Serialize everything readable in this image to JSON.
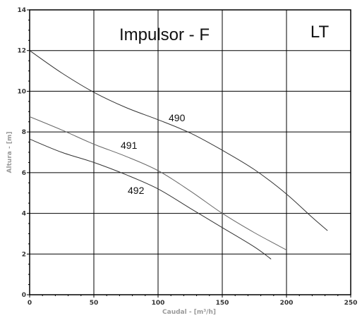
{
  "chart_data": {
    "type": "line",
    "title": "Impulsor - F",
    "annotation": "LT",
    "xlabel": "Caudal - [m³/h]",
    "ylabel": "Altura - [m]",
    "xlim": [
      0,
      250
    ],
    "ylim": [
      0,
      14
    ],
    "xticks": [
      "0",
      "50",
      "100",
      "150",
      "200",
      "250"
    ],
    "yticks": [
      "0",
      "2",
      "4",
      "6",
      "8",
      "10",
      "12",
      "14"
    ],
    "grid": true,
    "series": [
      {
        "name": "490",
        "x": [
          0,
          25,
          50,
          75,
          100,
          125,
          150,
          175,
          200,
          220,
          232
        ],
        "y": [
          12.0,
          10.9,
          9.95,
          9.2,
          8.6,
          7.95,
          7.1,
          6.15,
          4.95,
          3.8,
          3.15
        ]
      },
      {
        "name": "491",
        "x": [
          0,
          25,
          50,
          75,
          100,
          125,
          150,
          175,
          200
        ],
        "y": [
          8.75,
          8.1,
          7.4,
          6.8,
          6.1,
          5.1,
          4.0,
          3.05,
          2.2
        ]
      },
      {
        "name": "492",
        "x": [
          0,
          25,
          50,
          75,
          100,
          125,
          150,
          175,
          188
        ],
        "y": [
          7.65,
          7.0,
          6.5,
          5.9,
          5.2,
          4.25,
          3.3,
          2.35,
          1.75
        ]
      }
    ]
  }
}
